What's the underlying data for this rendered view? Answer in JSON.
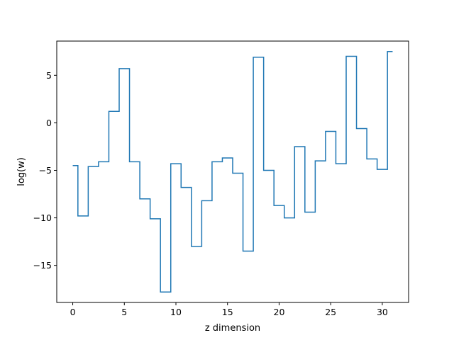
{
  "chart_data": {
    "type": "line",
    "drawstyle": "steps-mid",
    "title": "",
    "xlabel": "z dimension",
    "ylabel": "log(w)",
    "xlim": [
      -1.55,
      32.55
    ],
    "ylim": [
      -18.9,
      8.6
    ],
    "xticks": [
      0,
      5,
      10,
      15,
      20,
      25,
      30
    ],
    "yticks": [
      -15,
      -10,
      -5,
      0,
      5
    ],
    "grid": false,
    "legend": "none",
    "series": [
      {
        "color": "#1f77b4",
        "x": [
          0,
          1,
          2,
          3,
          4,
          5,
          6,
          7,
          8,
          9,
          10,
          11,
          12,
          13,
          14,
          15,
          16,
          17,
          18,
          19,
          20,
          21,
          22,
          23,
          24,
          25,
          26,
          27,
          28,
          29,
          30,
          31
        ],
        "y": [
          -4.5,
          -9.8,
          -4.6,
          -4.1,
          1.2,
          5.7,
          -4.1,
          -8.0,
          -10.1,
          -17.8,
          -4.3,
          -6.8,
          -13.0,
          -8.2,
          -4.1,
          -3.7,
          -5.3,
          -13.5,
          6.9,
          -5.0,
          -8.7,
          -10.0,
          -2.5,
          -9.4,
          -4.0,
          -0.9,
          -4.3,
          7.0,
          -0.6,
          -3.8,
          -4.9,
          7.5
        ]
      }
    ]
  }
}
